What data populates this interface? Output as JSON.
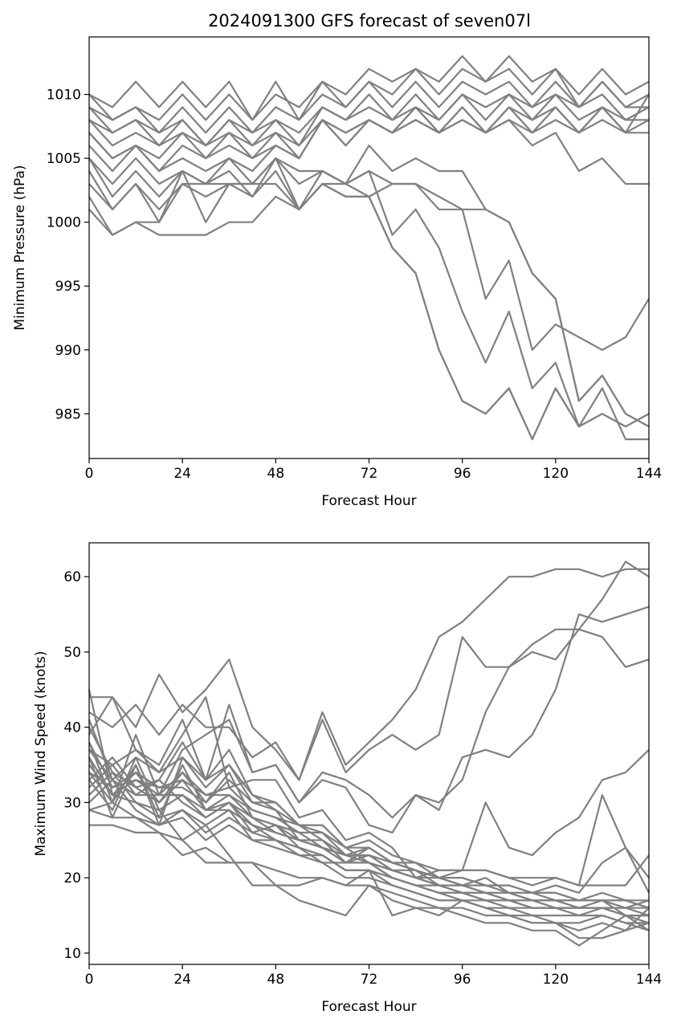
{
  "chart_data": [
    {
      "type": "line",
      "title": "2024091300 GFS forecast of seven07l",
      "xlabel": "Forecast Hour",
      "ylabel": "Minimum Pressure (hPa)",
      "xlim": [
        0,
        144
      ],
      "ylim": [
        981.5,
        1014.5
      ],
      "xticks": [
        0,
        24,
        48,
        72,
        96,
        120,
        144
      ],
      "yticks": [
        985,
        990,
        995,
        1000,
        1005,
        1010
      ],
      "line_color": "#808080",
      "x": [
        0,
        6,
        12,
        18,
        24,
        30,
        36,
        42,
        48,
        54,
        60,
        66,
        72,
        78,
        84,
        90,
        96,
        102,
        108,
        114,
        120,
        126,
        132,
        138,
        144
      ],
      "series": [
        {
          "values": [
            1010,
            1009,
            1011,
            1009,
            1011,
            1009,
            1011,
            1008,
            1011,
            1008,
            1011,
            1010,
            1012,
            1011,
            1012,
            1011,
            1013,
            1011,
            1013,
            1011,
            1012,
            1010,
            1012,
            1010,
            1011
          ]
        },
        {
          "values": [
            1010,
            1008,
            1009,
            1008,
            1010,
            1008,
            1010,
            1008,
            1010,
            1009,
            1011,
            1009,
            1011,
            1010,
            1012,
            1010,
            1012,
            1011,
            1012,
            1010,
            1012,
            1009,
            1011,
            1009,
            1010
          ]
        },
        {
          "values": [
            1009,
            1008,
            1009,
            1007,
            1009,
            1007,
            1009,
            1007,
            1009,
            1008,
            1010,
            1009,
            1011,
            1009,
            1011,
            1009,
            1011,
            1010,
            1011,
            1009,
            1011,
            1009,
            1011,
            1009,
            1009
          ]
        },
        {
          "values": [
            1009,
            1007,
            1008,
            1007,
            1008,
            1006,
            1008,
            1007,
            1008,
            1007,
            1009,
            1008,
            1010,
            1008,
            1010,
            1008,
            1010,
            1009,
            1010,
            1009,
            1010,
            1009,
            1010,
            1008,
            1009
          ]
        },
        {
          "values": [
            1008,
            1007,
            1008,
            1006,
            1008,
            1006,
            1008,
            1006,
            1008,
            1006,
            1009,
            1008,
            1009,
            1008,
            1009,
            1008,
            1010,
            1008,
            1010,
            1008,
            1010,
            1008,
            1009,
            1008,
            1008
          ]
        },
        {
          "values": [
            1008,
            1006,
            1007,
            1006,
            1007,
            1006,
            1007,
            1006,
            1007,
            1006,
            1008,
            1007,
            1008,
            1007,
            1009,
            1007,
            1009,
            1007,
            1009,
            1008,
            1009,
            1007,
            1009,
            1007,
            1008
          ]
        },
        {
          "values": [
            1007,
            1005,
            1006,
            1005,
            1007,
            1005,
            1007,
            1005,
            1007,
            1005,
            1008,
            1007,
            1008,
            1007,
            1009,
            1007,
            1009,
            1007,
            1008,
            1007,
            1008,
            1007,
            1008,
            1007,
            1007
          ]
        },
        {
          "values": [
            1007,
            1005,
            1006,
            1004,
            1006,
            1005,
            1006,
            1005,
            1006,
            1005,
            1008,
            1006,
            1008,
            1007,
            1008,
            1007,
            1008,
            1007,
            1008,
            1006,
            1007,
            1004,
            1005,
            1003,
            1003
          ]
        },
        {
          "values": [
            1006,
            1004,
            1006,
            1004,
            1005,
            1004,
            1005,
            1004,
            1006,
            1005,
            1008,
            1006,
            1008,
            1007,
            1008,
            1007,
            1008,
            1007,
            1009,
            1007,
            1009,
            1007,
            1009,
            1007,
            1010
          ]
        },
        {
          "values": [
            1005,
            1003,
            1005,
            1003,
            1004,
            1003,
            1005,
            1003,
            1005,
            1004,
            1004,
            1003,
            1006,
            1004,
            1005,
            1004,
            1004,
            1001,
            1000,
            996,
            994,
            986,
            988,
            985,
            984
          ]
        },
        {
          "values": [
            1005,
            1002,
            1004,
            1002,
            1004,
            1003,
            1004,
            1002,
            1005,
            1003,
            1004,
            1003,
            1004,
            1003,
            1003,
            1002,
            1001,
            994,
            997,
            990,
            992,
            991,
            990,
            991,
            994
          ]
        },
        {
          "values": [
            1004,
            1001,
            1003,
            1001,
            1003,
            1002,
            1003,
            1002,
            1004,
            1001,
            1004,
            1003,
            1004,
            999,
            1001,
            998,
            993,
            989,
            993,
            987,
            989,
            984,
            987,
            983,
            983
          ]
        },
        {
          "values": [
            1003,
            1001,
            1003,
            1000,
            1004,
            1000,
            1003,
            1003,
            1005,
            1001,
            1003,
            1003,
            1002,
            998,
            996,
            990,
            986,
            985,
            987,
            983,
            987,
            984,
            985,
            984,
            985
          ]
        },
        {
          "values": [
            1002,
            999,
            1000,
            1000,
            1003,
            1003,
            1003,
            1003,
            1003,
            1001,
            1003,
            1002,
            1002,
            998,
            996,
            990,
            986,
            985,
            987,
            983,
            987,
            984,
            985,
            984,
            985
          ]
        },
        {
          "values": [
            1001,
            999,
            1000,
            999,
            999,
            999,
            1000,
            1000,
            1002,
            1001,
            1003,
            1002,
            1002,
            1003,
            1003,
            1001,
            1001,
            1001,
            1000,
            996,
            994,
            986,
            988,
            985,
            984
          ]
        }
      ]
    },
    {
      "type": "line",
      "title": "",
      "xlabel": "Forecast Hour",
      "ylabel": "Maximum Wind Speed (knots)",
      "xlim": [
        0,
        144
      ],
      "ylim": [
        8.5,
        64.5
      ],
      "xticks": [
        0,
        24,
        48,
        72,
        96,
        120,
        144
      ],
      "yticks": [
        10,
        20,
        30,
        40,
        50,
        60
      ],
      "line_color": "#808080",
      "x": [
        0,
        6,
        12,
        18,
        24,
        30,
        36,
        42,
        48,
        54,
        60,
        66,
        72,
        78,
        84,
        90,
        96,
        102,
        108,
        114,
        120,
        126,
        132,
        138,
        144
      ],
      "series": [
        {
          "values": [
            44,
            44,
            40,
            47,
            42,
            45,
            49,
            40,
            37,
            33,
            42,
            35,
            38,
            41,
            45,
            52,
            54,
            57,
            60,
            60,
            61,
            61,
            60,
            61,
            61
          ]
        },
        {
          "values": [
            42,
            40,
            43,
            39,
            43,
            40,
            40,
            36,
            38,
            33,
            41,
            34,
            37,
            39,
            37,
            39,
            52,
            48,
            48,
            51,
            53,
            53,
            52,
            48,
            49
          ]
        },
        {
          "values": [
            39,
            44,
            37,
            35,
            41,
            33,
            43,
            34,
            35,
            30,
            33,
            32,
            27,
            26,
            31,
            29,
            36,
            37,
            36,
            39,
            45,
            55,
            54,
            55,
            56
          ]
        },
        {
          "values": [
            38,
            30,
            39,
            31,
            37,
            39,
            41,
            34,
            35,
            30,
            34,
            33,
            31,
            28,
            31,
            30,
            33,
            42,
            48,
            50,
            49,
            53,
            57,
            62,
            60
          ]
        },
        {
          "values": [
            37,
            33,
            36,
            34,
            39,
            44,
            32,
            33,
            33,
            28,
            29,
            25,
            26,
            24,
            20,
            21,
            21,
            30,
            24,
            23,
            26,
            28,
            33,
            34,
            37
          ]
        },
        {
          "values": [
            36,
            28,
            35,
            27,
            36,
            32,
            35,
            31,
            30,
            27,
            25,
            23,
            24,
            22,
            22,
            20,
            21,
            21,
            20,
            19,
            20,
            19,
            31,
            24,
            18
          ]
        },
        {
          "values": [
            35,
            31,
            34,
            30,
            34,
            30,
            33,
            30,
            29,
            27,
            27,
            24,
            24,
            22,
            21,
            20,
            20,
            19,
            19,
            18,
            19,
            18,
            22,
            24,
            20
          ]
        },
        {
          "values": [
            34,
            32,
            33,
            32,
            33,
            31,
            32,
            29,
            28,
            26,
            26,
            23,
            23,
            21,
            21,
            19,
            19,
            18,
            18,
            18,
            18,
            17,
            18,
            17,
            16
          ]
        },
        {
          "values": [
            33,
            29,
            36,
            29,
            31,
            29,
            31,
            28,
            27,
            25,
            25,
            22,
            23,
            21,
            20,
            19,
            18,
            18,
            18,
            17,
            17,
            17,
            17,
            16,
            17
          ]
        },
        {
          "values": [
            32,
            35,
            31,
            33,
            30,
            28,
            30,
            27,
            26,
            25,
            24,
            22,
            22,
            20,
            19,
            18,
            18,
            17,
            17,
            16,
            16,
            16,
            17,
            15,
            15
          ]
        },
        {
          "values": [
            31,
            34,
            30,
            28,
            29,
            27,
            29,
            27,
            25,
            24,
            23,
            21,
            21,
            20,
            19,
            18,
            17,
            17,
            16,
            16,
            16,
            15,
            16,
            15,
            14
          ]
        },
        {
          "values": [
            30,
            33,
            29,
            27,
            29,
            26,
            28,
            26,
            25,
            24,
            23,
            21,
            21,
            19,
            18,
            17,
            17,
            16,
            16,
            15,
            15,
            15,
            15,
            14,
            14
          ]
        },
        {
          "values": [
            29,
            30,
            28,
            27,
            28,
            25,
            27,
            25,
            24,
            23,
            22,
            20,
            20,
            19,
            18,
            17,
            17,
            16,
            15,
            15,
            14,
            14,
            15,
            14,
            13
          ]
        },
        {
          "values": [
            27,
            27,
            26,
            26,
            23,
            24,
            22,
            22,
            21,
            20,
            20,
            19,
            19,
            18,
            17,
            16,
            16,
            15,
            15,
            14,
            14,
            13,
            14,
            13,
            16
          ]
        },
        {
          "values": [
            29,
            28,
            28,
            26,
            25,
            22,
            22,
            22,
            19,
            19,
            20,
            19,
            21,
            15,
            16,
            16,
            15,
            14,
            14,
            13,
            13,
            11,
            13,
            15,
            13
          ]
        },
        {
          "values": [
            45,
            31,
            30,
            29,
            25,
            27,
            23,
            19,
            19,
            17,
            16,
            15,
            19,
            17,
            16,
            15,
            17,
            16,
            15,
            14,
            14,
            12,
            12,
            13,
            14
          ]
        },
        {
          "values": [
            41,
            33,
            31,
            31,
            34,
            31,
            31,
            29,
            28,
            27,
            26,
            24,
            22,
            21,
            20,
            20,
            19,
            19,
            18,
            17,
            17,
            16,
            16,
            16,
            15
          ]
        },
        {
          "values": [
            40,
            34,
            32,
            30,
            33,
            29,
            30,
            28,
            27,
            26,
            24,
            23,
            22,
            21,
            20,
            19,
            19,
            18,
            17,
            17,
            17,
            16,
            16,
            15,
            15
          ]
        },
        {
          "values": [
            38,
            32,
            34,
            32,
            32,
            30,
            34,
            28,
            26,
            25,
            24,
            23,
            23,
            22,
            21,
            20,
            20,
            19,
            19,
            18,
            18,
            17,
            17,
            17,
            16
          ]
        },
        {
          "values": [
            36,
            31,
            33,
            31,
            31,
            28,
            30,
            26,
            27,
            24,
            22,
            22,
            22,
            20,
            19,
            19,
            18,
            17,
            17,
            17,
            16,
            16,
            16,
            16,
            16
          ]
        },
        {
          "values": [
            34,
            30,
            35,
            28,
            35,
            29,
            29,
            25,
            25,
            23,
            23,
            21,
            21,
            20,
            19,
            18,
            18,
            18,
            17,
            16,
            16,
            16,
            16,
            15,
            15
          ]
        },
        {
          "values": [
            33,
            36,
            32,
            33,
            38,
            33,
            37,
            31,
            29,
            25,
            24,
            22,
            24,
            22,
            21,
            20,
            19,
            20,
            18,
            18,
            17,
            17,
            17,
            17,
            17
          ]
        },
        {
          "values": [
            37,
            35,
            37,
            34,
            36,
            33,
            35,
            30,
            30,
            27,
            27,
            24,
            25,
            23,
            22,
            21,
            21,
            21,
            20,
            20,
            20,
            19,
            19,
            19,
            23
          ]
        }
      ]
    }
  ]
}
